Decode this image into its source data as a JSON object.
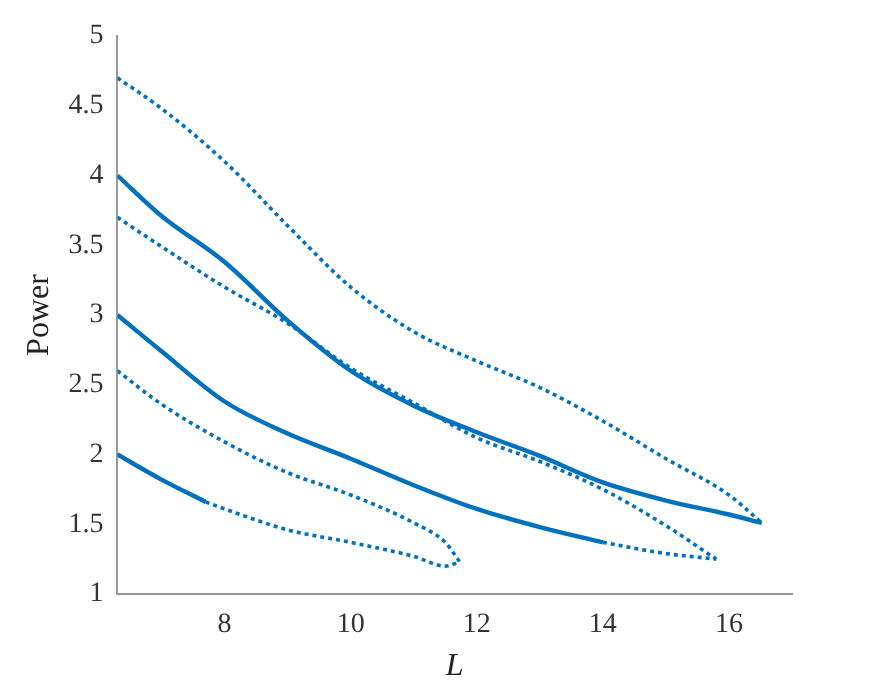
{
  "chart_data": {
    "type": "line",
    "xlabel": "L",
    "ylabel": "Power",
    "xlim": [
      6.3,
      17
    ],
    "ylim": [
      1,
      5
    ],
    "xticks": [
      8,
      10,
      12,
      14,
      16
    ],
    "yticks": [
      1,
      1.5,
      2,
      2.5,
      3,
      3.5,
      4,
      4.5,
      5
    ],
    "grid": false,
    "legend": false,
    "marker": "none",
    "series": [
      {
        "color": "#0072bd",
        "line_style": "solid",
        "x": [
          6.3,
          7,
          7.7
        ],
        "values": [
          2.0,
          1.82,
          1.66
        ]
      },
      {
        "color": "#0072bd",
        "line_style": "dotted",
        "x": [
          7.7,
          8,
          9,
          10,
          11,
          11.5,
          11.73
        ],
        "values": [
          1.66,
          1.61,
          1.46,
          1.37,
          1.27,
          1.2,
          1.23
        ]
      },
      {
        "color": "#0072bd",
        "line_style": "dotted",
        "x": [
          6.3,
          7,
          8,
          9,
          10,
          11,
          11.5,
          11.73
        ],
        "values": [
          2.6,
          2.36,
          2.09,
          1.87,
          1.71,
          1.51,
          1.37,
          1.23
        ]
      },
      {
        "color": "#0072bd",
        "line_style": "solid",
        "x": [
          6.3,
          7,
          8,
          9,
          10,
          11,
          12,
          13,
          14
        ],
        "values": [
          3.0,
          2.74,
          2.38,
          2.15,
          1.97,
          1.78,
          1.61,
          1.48,
          1.37
        ]
      },
      {
        "color": "#0072bd",
        "line_style": "dotted",
        "x": [
          14,
          15,
          15.8
        ],
        "values": [
          1.37,
          1.29,
          1.25
        ]
      },
      {
        "color": "#0072bd",
        "line_style": "dotted",
        "x": [
          6.3,
          7,
          8,
          9,
          10,
          11,
          12,
          13,
          14,
          15,
          15.8
        ],
        "values": [
          3.7,
          3.49,
          3.2,
          2.94,
          2.62,
          2.37,
          2.12,
          1.95,
          1.75,
          1.49,
          1.25
        ]
      },
      {
        "color": "#0072bd",
        "line_style": "solid",
        "x": [
          6.3,
          7,
          8,
          9,
          10,
          11,
          12,
          13,
          14,
          15,
          16,
          16.52
        ],
        "values": [
          4.0,
          3.71,
          3.38,
          2.96,
          2.6,
          2.35,
          2.16,
          1.99,
          1.8,
          1.67,
          1.57,
          1.51
        ]
      },
      {
        "color": "#0072bd",
        "line_style": "dotted",
        "x": [
          6.3,
          7,
          8,
          9,
          10,
          11,
          12,
          13,
          14,
          15,
          16,
          16.52
        ],
        "values": [
          4.7,
          4.48,
          4.1,
          3.64,
          3.2,
          2.88,
          2.67,
          2.48,
          2.24,
          1.97,
          1.71,
          1.51
        ]
      }
    ]
  }
}
